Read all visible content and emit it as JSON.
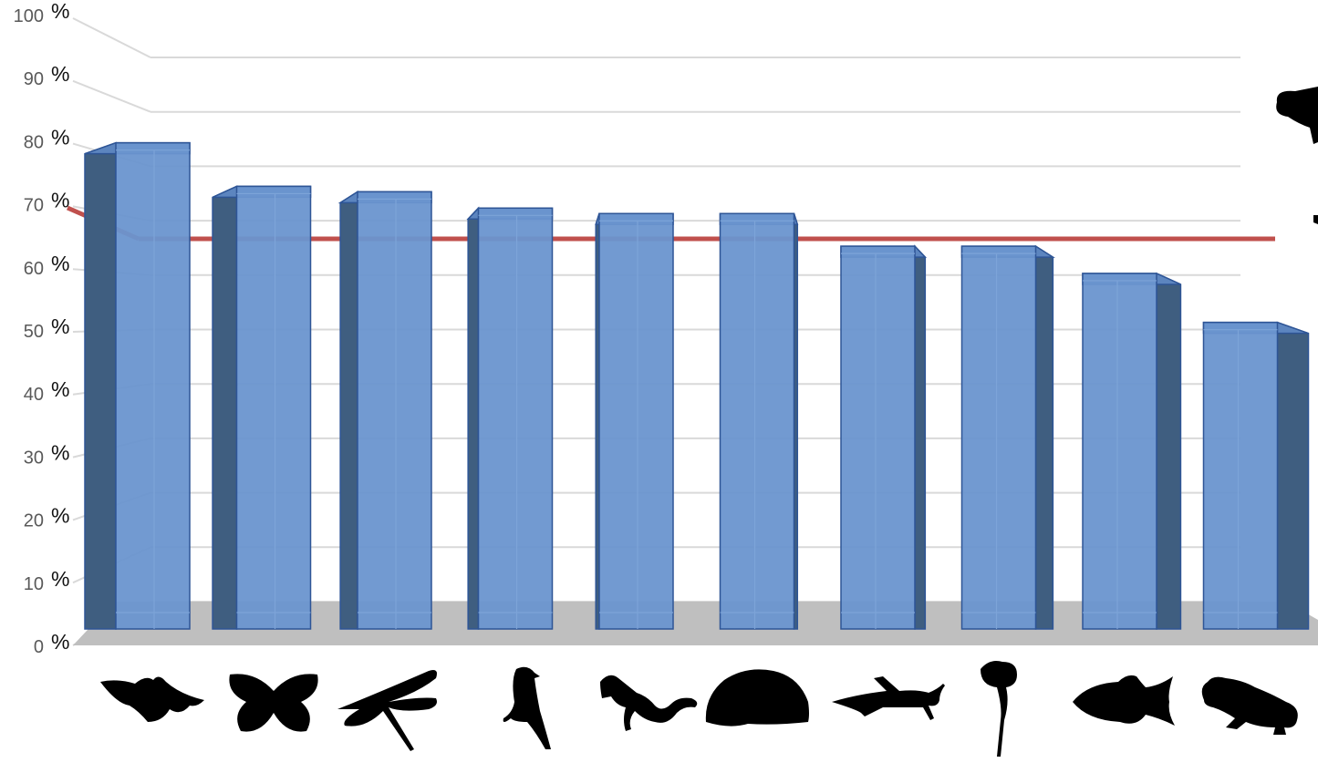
{
  "chart_data": {
    "type": "bar",
    "title": "",
    "xlabel": "",
    "ylabel": "",
    "ylim": [
      0,
      100
    ],
    "yticks": [
      {
        "num": "0",
        "unit": "%"
      },
      {
        "num": "10",
        "unit": "%"
      },
      {
        "num": "20",
        "unit": "%"
      },
      {
        "num": "30",
        "unit": "%"
      },
      {
        "num": "40",
        "unit": "%"
      },
      {
        "num": "50",
        "unit": "%"
      },
      {
        "num": "60",
        "unit": "%"
      },
      {
        "num": "70",
        "unit": "%"
      },
      {
        "num": "80",
        "unit": "%"
      },
      {
        "num": "90",
        "unit": "%"
      },
      {
        "num": "100",
        "unit": "%"
      }
    ],
    "categories": [
      "bat-icon",
      "butterfly-icon",
      "dragonfly-icon",
      "bird-icon",
      "salamander-icon",
      "hedgehog-icon",
      "grasshopper-icon",
      "poppy-icon",
      "fish-icon",
      "frog-icon"
    ],
    "values": [
      89,
      81,
      80,
      77,
      76,
      76,
      70,
      70,
      65,
      56
    ],
    "reference_line": 67,
    "grid": true,
    "colors": {
      "bar_front": "#6a95cf",
      "bar_side": "#3f5e80",
      "bar_edge": "#2e5596",
      "floor": "#bfbfbf",
      "reference_line": "#c0504d",
      "gridline": "#d9d9d9",
      "silhouette": "#000000"
    }
  }
}
